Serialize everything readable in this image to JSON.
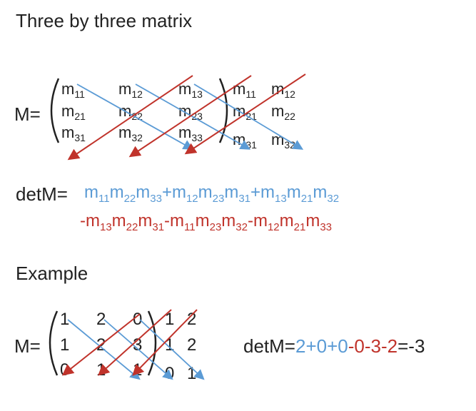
{
  "title": "Three by three matrix",
  "matrix_label": "M=",
  "cells": {
    "r1": [
      [
        "m",
        "11"
      ],
      [
        "m",
        "12"
      ],
      [
        "m",
        "13"
      ],
      [
        "m",
        "11"
      ],
      [
        "m",
        "12"
      ]
    ],
    "r2": [
      [
        "m",
        "21"
      ],
      [
        "m",
        "22"
      ],
      [
        "m",
        "23"
      ],
      [
        "m",
        "21"
      ],
      [
        "m",
        "22"
      ]
    ],
    "r3": [
      [
        "m",
        "31"
      ],
      [
        "m",
        "32"
      ],
      [
        "m",
        "33"
      ],
      [
        "m",
        "31"
      ],
      [
        "m",
        "32"
      ]
    ]
  },
  "det_label": "detM=",
  "formula_positive": "m11m22m33+m12m23m31+m13m21m32",
  "formula_negative": "-m13m22m31-m11m23m32-m12m21m33",
  "example_label": "Example",
  "example_matrix": {
    "r1": [
      "1",
      "2",
      "0",
      "1",
      "2"
    ],
    "r2": [
      "1",
      "2",
      "3",
      "1",
      "2"
    ],
    "r3": [
      "0",
      "1",
      "1",
      "0",
      "1"
    ]
  },
  "example_det_prefix": "detM=",
  "example_det_blue": "2+0+0",
  "example_det_red": "-0-3-2",
  "example_det_result": "=-3",
  "colors": {
    "blue": "#5b9bd5",
    "red": "#c0332b",
    "text": "#222222"
  }
}
